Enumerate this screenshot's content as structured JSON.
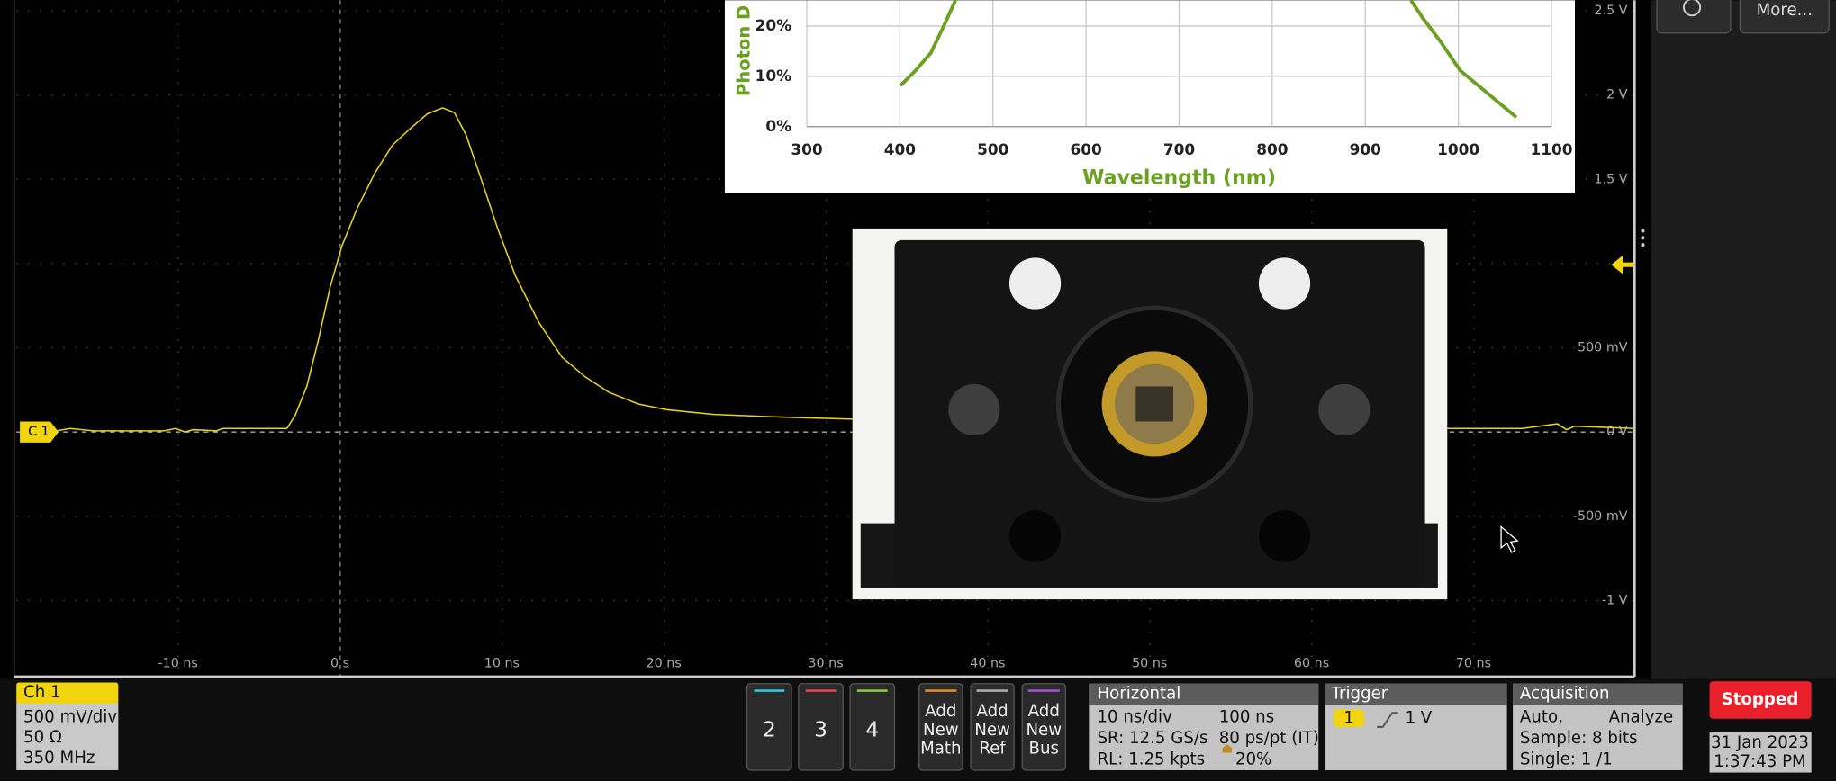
{
  "right_panel": {
    "more_button": "More..."
  },
  "waveform": {
    "channel_marker": "C 1",
    "x_labels": [
      "-10 ns",
      "0 s",
      "10 ns",
      "20 ns",
      "30 ns",
      "40 ns",
      "50 ns",
      "60 ns",
      "70 ns"
    ],
    "y_labels": [
      "2.5 V",
      "2 V",
      "1.5 V",
      "500 mV",
      "0 V",
      "-500 mV",
      "-1 V"
    ]
  },
  "inset_plot": {
    "y_title": "Photon D",
    "y_ticks": [
      "0%",
      "10%",
      "20%"
    ],
    "x_ticks": [
      "300",
      "400",
      "500",
      "600",
      "700",
      "800",
      "900",
      "1000",
      "1100"
    ],
    "x_title": "Wavelength (nm)"
  },
  "channel_badge": {
    "title": "Ch 1",
    "lines": [
      "500 mV/div",
      "50 Ω",
      "350 MHz"
    ]
  },
  "channel_buttons": [
    "2",
    "3",
    "4"
  ],
  "add_buttons": [
    [
      "Add",
      "New",
      "Math"
    ],
    [
      "Add",
      "New",
      "Ref"
    ],
    [
      "Add",
      "New",
      "Bus"
    ]
  ],
  "horizontal": {
    "title": "Horizontal",
    "cells": [
      "10 ns/div",
      "100 ns",
      "SR: 12.5 GS/s",
      "80 ps/pt (IT)",
      "RL: 1.25 kpts",
      "20%"
    ]
  },
  "trigger": {
    "title": "Trigger",
    "source": "1",
    "level": "1 V"
  },
  "acquisition": {
    "title": "Acquisition",
    "cells": [
      "Auto,",
      "Analyze",
      "Sample: 8 bits",
      "Single: 1 /1"
    ]
  },
  "status": "Stopped",
  "date": "31 Jan 2023",
  "time": "1:37:43 PM"
}
